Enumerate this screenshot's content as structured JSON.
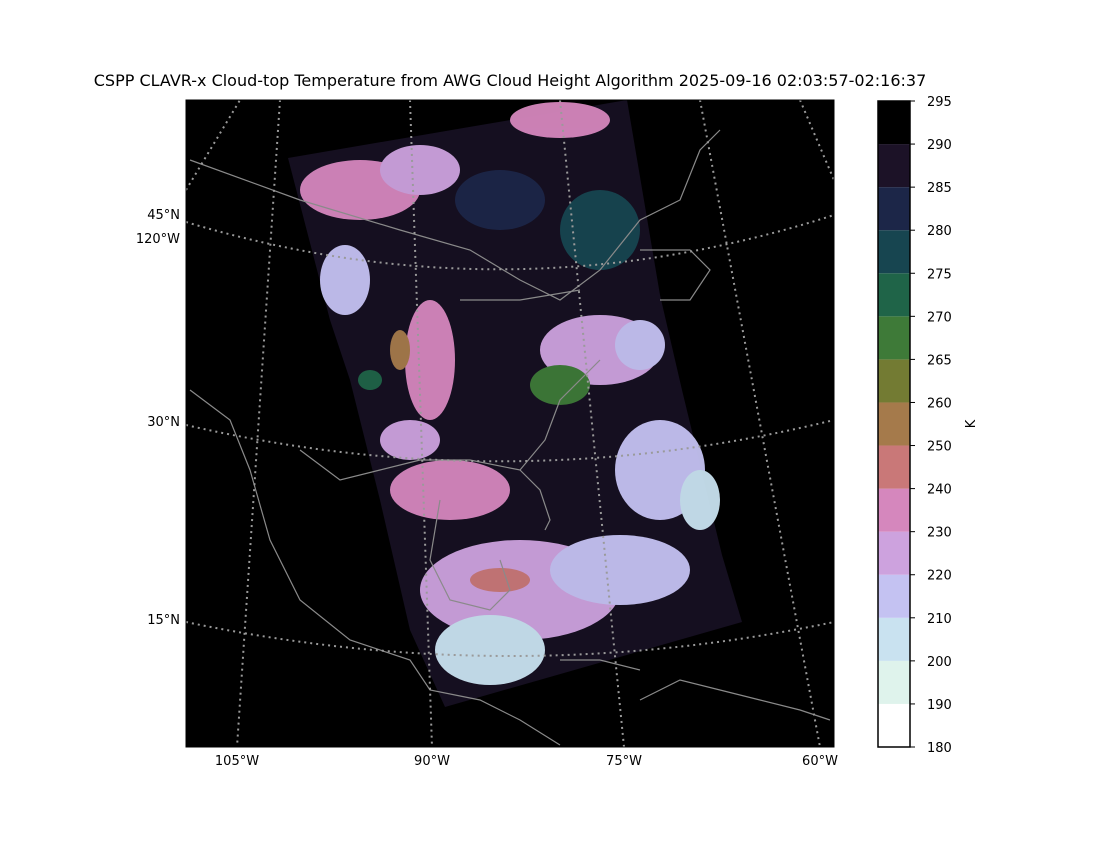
{
  "title": "CSPP CLAVR-x Cloud-top Temperature from AWG Cloud Height Algorithm 2025-09-16 02:03:57-02:16:37",
  "map": {
    "lat_labels": [
      "45°N",
      "120°W",
      "30°N",
      "15°N"
    ],
    "lon_labels": [
      "105°W",
      "90°W",
      "75°W",
      "60°W"
    ]
  },
  "colorbar": {
    "label": "K",
    "boundaries": [
      180,
      190,
      200,
      210,
      220,
      230,
      240,
      250,
      260,
      265,
      270,
      275,
      280,
      285,
      290,
      295
    ],
    "colors": [
      "#ffffff",
      "#dff3ec",
      "#c9e2f0",
      "#c4c2f2",
      "#cda2de",
      "#d587bd",
      "#c97878",
      "#a57a4b",
      "#737b33",
      "#3e7a38",
      "#1f6448",
      "#174550",
      "#1c2648",
      "#1c1227",
      "#000000"
    ]
  }
}
